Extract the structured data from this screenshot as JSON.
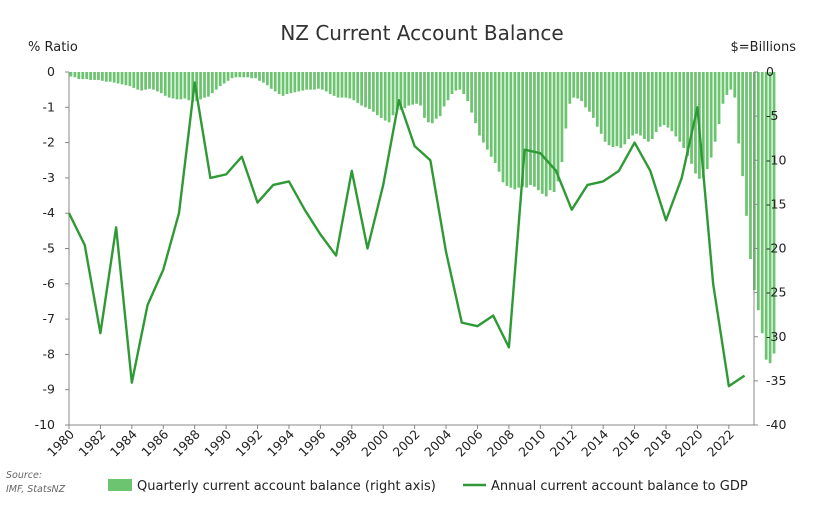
{
  "chart_data": {
    "type": "line",
    "title": "NZ Current Account Balance",
    "left_axis": {
      "label": "% Ratio",
      "range": [
        -10,
        0
      ],
      "ticks": [
        "0",
        "-1",
        "-2",
        "-3",
        "-4",
        "-5",
        "-6",
        "-7",
        "-8",
        "-9",
        "-10"
      ]
    },
    "right_axis": {
      "label": "$=Billions",
      "range": [
        -40,
        0
      ],
      "ticks": [
        "0",
        "-5",
        "-10",
        "-15",
        "-20",
        "-25",
        "-30",
        "-35",
        "-40"
      ]
    },
    "x_ticks": [
      "1980",
      "1982",
      "1984",
      "1986",
      "1988",
      "1990",
      "1992",
      "1994",
      "1996",
      "1998",
      "2000",
      "2002",
      "2004",
      "2006",
      "2008",
      "2010",
      "2012",
      "2014",
      "2016",
      "2018",
      "2020",
      "2022"
    ],
    "x_range": [
      1980,
      2023.6
    ],
    "series": [
      {
        "name": "Quarterly current account balance (right axis)",
        "kind": "bar",
        "axis": "right",
        "color": "#6cc470",
        "start_year": 1980,
        "values": [
          -0.5,
          -0.6,
          -0.8,
          -0.8,
          -0.8,
          -0.9,
          -0.9,
          -0.9,
          -1.0,
          -1.1,
          -1.1,
          -1.2,
          -1.3,
          -1.4,
          -1.5,
          -1.6,
          -1.8,
          -2.0,
          -2.1,
          -2.0,
          -1.9,
          -2.0,
          -2.2,
          -2.4,
          -2.7,
          -2.9,
          -3.0,
          -3.1,
          -3.1,
          -3.0,
          -3.2,
          -3.4,
          -3.3,
          -3.1,
          -2.9,
          -2.8,
          -2.4,
          -2.0,
          -1.6,
          -1.3,
          -1.0,
          -0.7,
          -0.6,
          -0.6,
          -0.6,
          -0.6,
          -0.7,
          -0.7,
          -1.0,
          -1.2,
          -1.5,
          -1.9,
          -2.2,
          -2.5,
          -2.7,
          -2.5,
          -2.4,
          -2.3,
          -2.2,
          -2.1,
          -2.0,
          -2.0,
          -2.0,
          -1.9,
          -2.0,
          -2.2,
          -2.5,
          -2.7,
          -2.9,
          -2.9,
          -2.9,
          -3.0,
          -3.2,
          -3.5,
          -3.8,
          -4.0,
          -4.2,
          -4.5,
          -4.9,
          -5.2,
          -5.5,
          -5.7,
          -4.9,
          -4.3,
          -4.3,
          -4.1,
          -3.8,
          -3.7,
          -3.6,
          -3.8,
          -5.2,
          -5.7,
          -5.8,
          -5.3,
          -5.0,
          -3.9,
          -3.2,
          -2.5,
          -2.1,
          -2.0,
          -2.5,
          -3.3,
          -4.6,
          -5.8,
          -7.2,
          -8.0,
          -8.8,
          -9.6,
          -10.3,
          -11.3,
          -12.5,
          -12.9,
          -13.1,
          -13.3,
          -13.1,
          -13.0,
          -13.1,
          -12.8,
          -13.0,
          -13.4,
          -13.8,
          -14.1,
          -13.4,
          -13.6,
          -12.4,
          -10.2,
          -6.4,
          -3.6,
          -2.9,
          -3.0,
          -3.3,
          -4.0,
          -4.5,
          -5.2,
          -6.2,
          -7.0,
          -7.9,
          -8.3,
          -8.5,
          -8.4,
          -8.6,
          -8.2,
          -7.6,
          -7.2,
          -7.0,
          -7.2,
          -7.6,
          -7.9,
          -7.6,
          -6.8,
          -6.2,
          -6.0,
          -6.3,
          -6.7,
          -7.3,
          -7.9,
          -8.6,
          -9.5,
          -10.4,
          -11.5,
          -12.1,
          -12.0,
          -11.0,
          -9.7,
          -7.9,
          -5.9,
          -3.6,
          -2.6,
          -2.0,
          -2.9,
          -8.1,
          -11.8,
          -16.3,
          -21.2,
          -24.7,
          -27.0,
          -29.6,
          -32.6,
          -33.0,
          -31.9
        ]
      },
      {
        "name": "Annual current account balance to GDP",
        "kind": "line",
        "axis": "left",
        "color": "#2f9a35",
        "x": [
          1980,
          1981,
          1982,
          1983,
          1984,
          1985,
          1986,
          1987,
          1988,
          1989,
          1990,
          1991,
          1992,
          1993,
          1994,
          1995,
          1996,
          1997,
          1998,
          1999,
          2000,
          2001,
          2002,
          2003,
          2004,
          2005,
          2006,
          2007,
          2008,
          2009,
          2010,
          2011,
          2012,
          2013,
          2014,
          2015,
          2016,
          2017,
          2018,
          2019,
          2020,
          2021,
          2022,
          2023
        ],
        "values": [
          -4.0,
          -4.9,
          -7.4,
          -4.4,
          -8.8,
          -6.6,
          -5.6,
          -4.0,
          -0.3,
          -3.0,
          -2.9,
          -2.4,
          -3.7,
          -3.2,
          -3.1,
          -3.9,
          -4.6,
          -5.2,
          -2.8,
          -5.0,
          -3.2,
          -0.8,
          -2.1,
          -2.5,
          -5.1,
          -7.1,
          -7.2,
          -6.9,
          -7.8,
          -2.2,
          -2.3,
          -2.8,
          -3.9,
          -3.2,
          -3.1,
          -2.8,
          -2.0,
          -2.8,
          -4.2,
          -3.0,
          -1.0,
          -6.0,
          -8.9,
          -8.6
        ]
      }
    ],
    "source": [
      "Source:",
      "IMF, StatsNZ"
    ],
    "grid": false,
    "legend_position": "bottom"
  }
}
